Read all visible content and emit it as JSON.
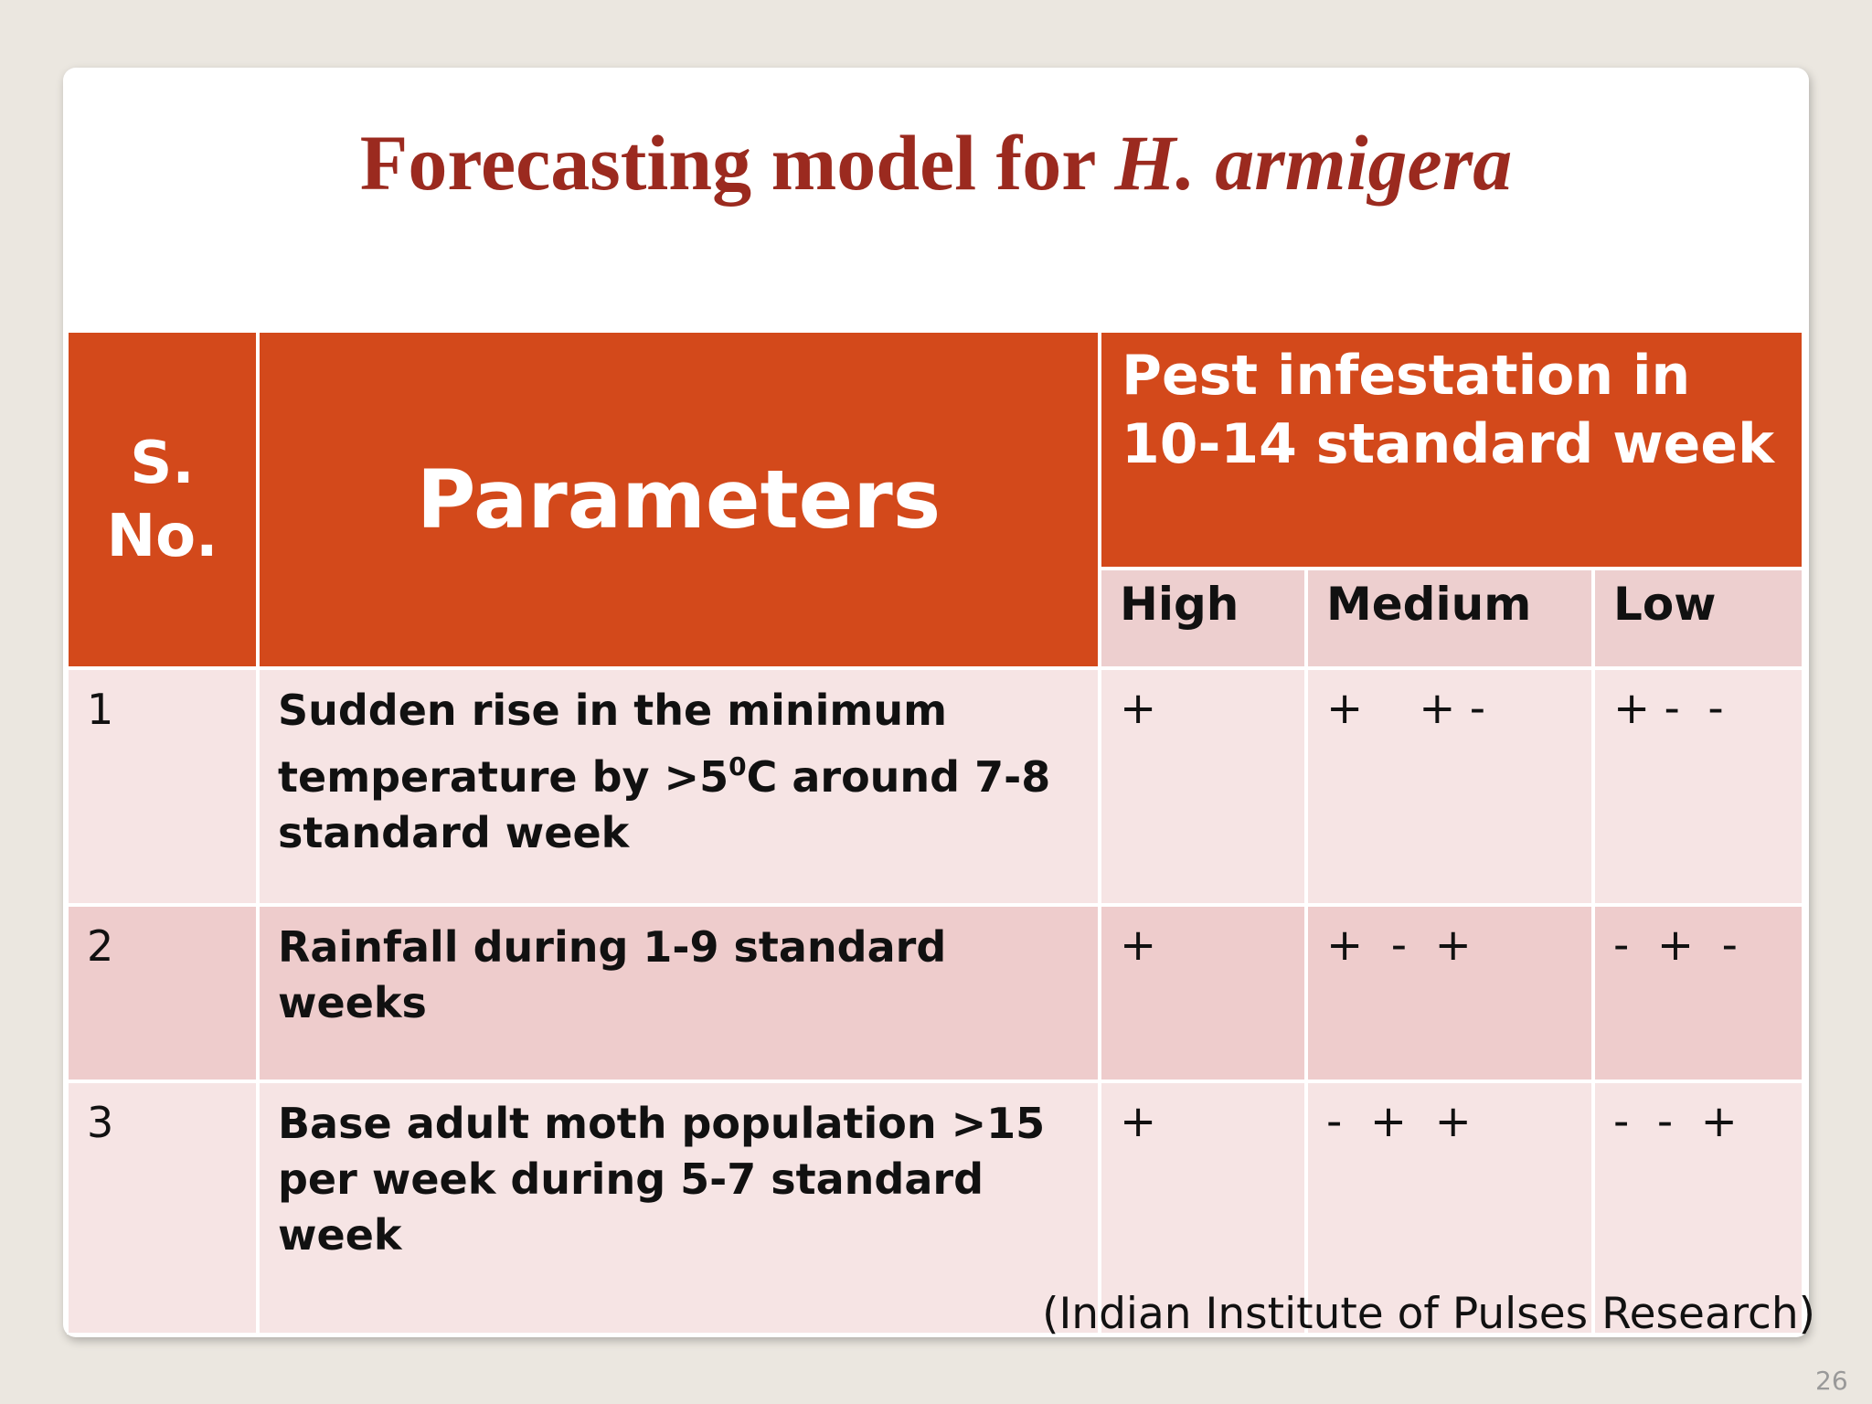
{
  "title": {
    "text": "Forecasting model for ",
    "italic": "H. armigera"
  },
  "table": {
    "headers": {
      "sno": "S. No.",
      "parameters": "Parameters",
      "group": "Pest infestation in 10-14 standard week",
      "levels": [
        "High",
        "Medium",
        "Low"
      ]
    },
    "rows": [
      {
        "sno": "1",
        "parameter": {
          "before": "Sudden rise in the minimum temperature by >5",
          "sup": "0",
          "after": "C around 7-8 standard week"
        },
        "cells": [
          "+",
          "+    + -",
          "+ -  -"
        ]
      },
      {
        "sno": "2",
        "parameter": {
          "before": "Rainfall during 1-9 standard weeks"
        },
        "cells": [
          "+",
          "+  -  +",
          "-  +  -"
        ]
      },
      {
        "sno": "3",
        "parameter": {
          "before": "Base adult moth population >15 per week during 5-7 standard week"
        },
        "cells": [
          "+",
          "-  +  +",
          "-  -  +"
        ]
      }
    ]
  },
  "source": "(Indian Institute of Pulses Research)",
  "page_number": "26"
}
